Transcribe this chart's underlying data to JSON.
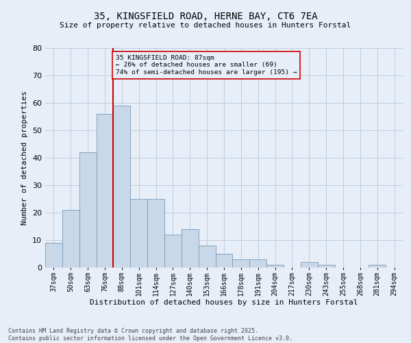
{
  "title1": "35, KINGSFIELD ROAD, HERNE BAY, CT6 7EA",
  "title2": "Size of property relative to detached houses in Hunters Forstal",
  "xlabel": "Distribution of detached houses by size in Hunters Forstal",
  "ylabel": "Number of detached properties",
  "categories": [
    "37sqm",
    "50sqm",
    "63sqm",
    "76sqm",
    "88sqm",
    "101sqm",
    "114sqm",
    "127sqm",
    "140sqm",
    "153sqm",
    "166sqm",
    "178sqm",
    "191sqm",
    "204sqm",
    "217sqm",
    "230sqm",
    "243sqm",
    "255sqm",
    "268sqm",
    "281sqm",
    "294sqm"
  ],
  "values": [
    9,
    21,
    42,
    56,
    59,
    25,
    25,
    12,
    14,
    8,
    5,
    3,
    3,
    1,
    0,
    2,
    1,
    0,
    0,
    1,
    0
  ],
  "bar_color": "#c8d8e8",
  "bar_edge_color": "#7799bb",
  "grid_color": "#b8c8da",
  "background_color": "#e8eef8",
  "vline_color": "#cc0000",
  "vline_x_index": 4,
  "annotation_title": "35 KINGSFIELD ROAD: 87sqm",
  "annotation_line1": "← 26% of detached houses are smaller (69)",
  "annotation_line2": "74% of semi-detached houses are larger (195) →",
  "annotation_box_color": "#cc0000",
  "ylim": [
    0,
    80
  ],
  "yticks": [
    0,
    10,
    20,
    30,
    40,
    50,
    60,
    70,
    80
  ],
  "footnote1": "Contains HM Land Registry data © Crown copyright and database right 2025.",
  "footnote2": "Contains public sector information licensed under the Open Government Licence v3.0.",
  "title1_fontsize": 10,
  "title2_fontsize": 8,
  "axis_label_fontsize": 8,
  "tick_fontsize": 7,
  "footnote_fontsize": 6
}
